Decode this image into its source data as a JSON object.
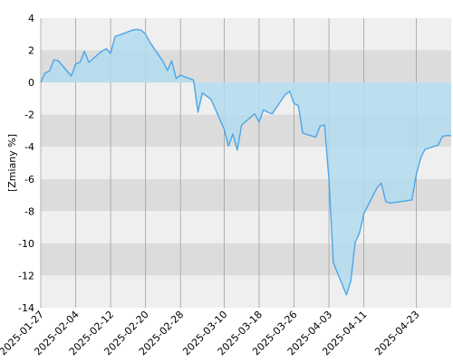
{
  "chart_data": {
    "type": "area",
    "title": "",
    "xlabel": "",
    "ylabel": "[Zmiany %]",
    "ylim": [
      -14,
      4
    ],
    "y_ticks": [
      4,
      2,
      0,
      -2,
      -4,
      -6,
      -8,
      -10,
      -12,
      -14
    ],
    "y_tick_labels": [
      "4",
      "2",
      "0",
      "-2",
      "-4",
      "-6",
      "-8",
      "-10",
      "-12",
      "-14"
    ],
    "xlim": [
      "2025-01-27",
      "2025-05-01"
    ],
    "x_ticks": [
      "2025-01-27",
      "2025-02-04",
      "2025-02-12",
      "2025-02-20",
      "2025-02-28",
      "2025-03-10",
      "2025-03-18",
      "2025-03-26",
      "2025-04-03",
      "2025-04-11",
      "2025-04-23"
    ],
    "grid": true,
    "legend": "none",
    "colors": {
      "line": "#4da6e8",
      "fill": "#b3dcef",
      "band_light": "#efefef",
      "band_dark": "#dcdcdc",
      "gridline": "#a0a0a0"
    },
    "series": [
      {
        "x": [
          "2025-01-27",
          "2025-01-28",
          "2025-01-29",
          "2025-01-30",
          "2025-01-31",
          "2025-02-03",
          "2025-02-04",
          "2025-02-05",
          "2025-02-06",
          "2025-02-07",
          "2025-02-10",
          "2025-02-11",
          "2025-02-12",
          "2025-02-13",
          "2025-02-14",
          "2025-02-17",
          "2025-02-18",
          "2025-02-19",
          "2025-02-20",
          "2025-02-21",
          "2025-02-24",
          "2025-02-25",
          "2025-02-26",
          "2025-02-27",
          "2025-02-28",
          "2025-03-03",
          "2025-03-04",
          "2025-03-05",
          "2025-03-06",
          "2025-03-07",
          "2025-03-10",
          "2025-03-11",
          "2025-03-12",
          "2025-03-13",
          "2025-03-14",
          "2025-03-17",
          "2025-03-18",
          "2025-03-19",
          "2025-03-20",
          "2025-03-21",
          "2025-03-24",
          "2025-03-25",
          "2025-03-26",
          "2025-03-27",
          "2025-03-28",
          "2025-03-31",
          "2025-04-01",
          "2025-04-02",
          "2025-04-03",
          "2025-04-04",
          "2025-04-07",
          "2025-04-08",
          "2025-04-09",
          "2025-04-10",
          "2025-04-11",
          "2025-04-14",
          "2025-04-15",
          "2025-04-16",
          "2025-04-17",
          "2025-04-22",
          "2025-04-23",
          "2025-04-24",
          "2025-04-25",
          "2025-04-28",
          "2025-04-29",
          "2025-04-30",
          "2025-05-01"
        ],
        "values": [
          0.0,
          0.6,
          0.7,
          1.4,
          1.35,
          0.4,
          1.15,
          1.25,
          1.95,
          1.25,
          1.95,
          2.1,
          1.8,
          2.85,
          2.95,
          3.25,
          3.3,
          3.25,
          3.0,
          2.5,
          1.3,
          0.75,
          1.35,
          0.25,
          0.45,
          0.15,
          -1.85,
          -0.65,
          -0.85,
          -1.05,
          -2.9,
          -3.95,
          -3.2,
          -4.2,
          -2.65,
          -1.95,
          -2.45,
          -1.7,
          -1.85,
          -1.95,
          -0.75,
          -0.55,
          -1.3,
          -1.45,
          -3.15,
          -3.4,
          -2.7,
          -2.65,
          -6.0,
          -11.2,
          -13.2,
          -12.35,
          -9.95,
          -9.35,
          -8.15,
          -6.55,
          -6.25,
          -7.4,
          -7.5,
          -7.3,
          -5.75,
          -4.7,
          -4.15,
          -3.9,
          -3.35,
          -3.3,
          -3.3
        ]
      }
    ]
  }
}
